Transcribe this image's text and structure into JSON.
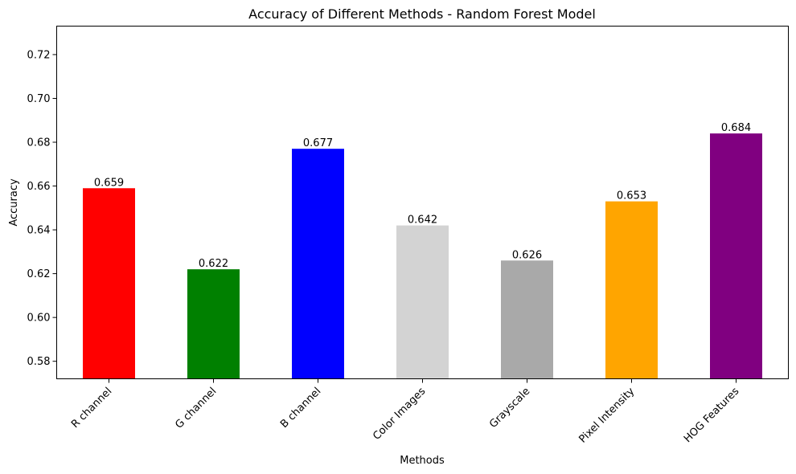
{
  "chart_data": {
    "type": "bar",
    "title": "Accuracy of Different Methods - Random Forest Model",
    "xlabel": "Methods",
    "ylabel": "Accuracy",
    "ylim": [
      0.572,
      0.733
    ],
    "yticks": [
      0.58,
      0.6,
      0.62,
      0.64,
      0.66,
      0.68,
      0.7,
      0.72
    ],
    "ytick_labels": [
      "0.58",
      "0.60",
      "0.62",
      "0.64",
      "0.66",
      "0.68",
      "0.70",
      "0.72"
    ],
    "grid": false,
    "categories": [
      "R channel",
      "G channel",
      "B channel",
      "Color Images",
      "Grayscale",
      "Pixel Intensity",
      "HOG Features"
    ],
    "values": [
      0.659,
      0.622,
      0.677,
      0.642,
      0.626,
      0.653,
      0.684
    ],
    "value_labels": [
      "0.659",
      "0.622",
      "0.677",
      "0.642",
      "0.626",
      "0.653",
      "0.684"
    ],
    "colors": [
      "#ff0000",
      "#008000",
      "#0000ff",
      "#d3d3d3",
      "#a9a9a9",
      "#ffa500",
      "#800080"
    ]
  }
}
